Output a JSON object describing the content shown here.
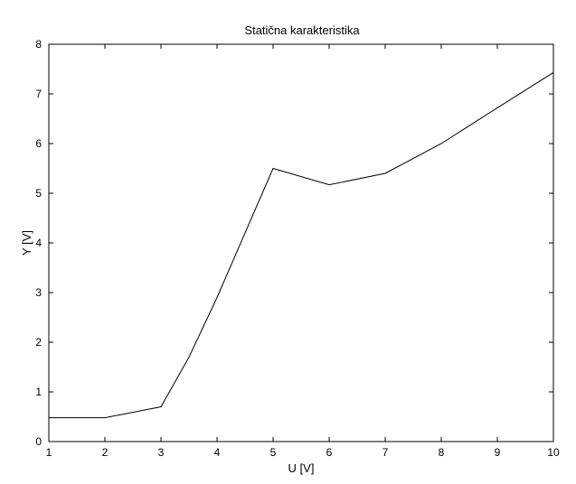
{
  "chart_data": {
    "type": "line",
    "title": "Statična karakteristika",
    "xlabel": "U [V]",
    "ylabel": "Y [V]",
    "xlim": [
      1,
      10
    ],
    "ylim": [
      0,
      8
    ],
    "grid": false,
    "x_ticks": [
      "1",
      "2",
      "3",
      "4",
      "5",
      "6",
      "7",
      "8",
      "9",
      "10"
    ],
    "y_ticks": [
      "0",
      "1",
      "2",
      "3",
      "4",
      "5",
      "6",
      "7",
      "8"
    ],
    "x": [
      1,
      2,
      3,
      3.5,
      4,
      5,
      6,
      7,
      8,
      9,
      10
    ],
    "y": [
      0.48,
      0.48,
      0.7,
      1.7,
      2.9,
      5.5,
      5.17,
      5.4,
      6.0,
      6.72,
      7.43
    ],
    "line_color": "#000000"
  }
}
